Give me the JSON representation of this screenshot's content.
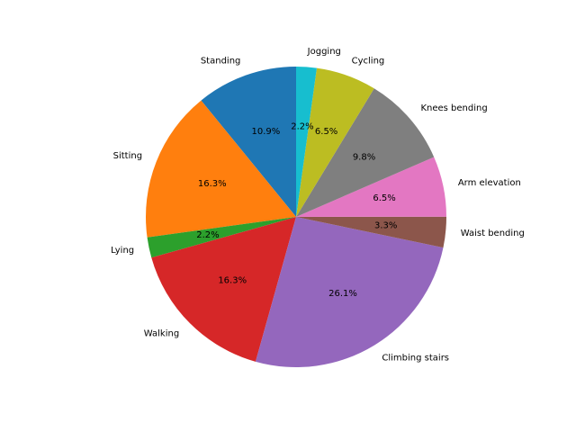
{
  "chart_data": {
    "type": "pie",
    "title": "",
    "start_angle_deg": 90,
    "direction": "counterclockwise",
    "slices": [
      {
        "label": "Standing",
        "value": 10.9,
        "pct_label": "10.9%",
        "color": "#1f77b4"
      },
      {
        "label": "Sitting",
        "value": 16.3,
        "pct_label": "16.3%",
        "color": "#ff7f0e"
      },
      {
        "label": "Lying",
        "value": 2.2,
        "pct_label": "2.2%",
        "color": "#2ca02c"
      },
      {
        "label": "Walking",
        "value": 16.3,
        "pct_label": "16.3%",
        "color": "#d62728"
      },
      {
        "label": "Climbing stairs",
        "value": 26.1,
        "pct_label": "26.1%",
        "color": "#9467bd"
      },
      {
        "label": "Waist bending",
        "value": 3.3,
        "pct_label": "3.3%",
        "color": "#8c564b"
      },
      {
        "label": "Arm elevation",
        "value": 6.5,
        "pct_label": "6.5%",
        "color": "#e377c2"
      },
      {
        "label": "Knees bending",
        "value": 9.8,
        "pct_label": "9.8%",
        "color": "#7f7f7f"
      },
      {
        "label": "Cycling",
        "value": 6.5,
        "pct_label": "6.5%",
        "color": "#bcbd22"
      },
      {
        "label": "Jogging",
        "value": 2.2,
        "pct_label": "2.2%",
        "color": "#17becf"
      }
    ]
  }
}
